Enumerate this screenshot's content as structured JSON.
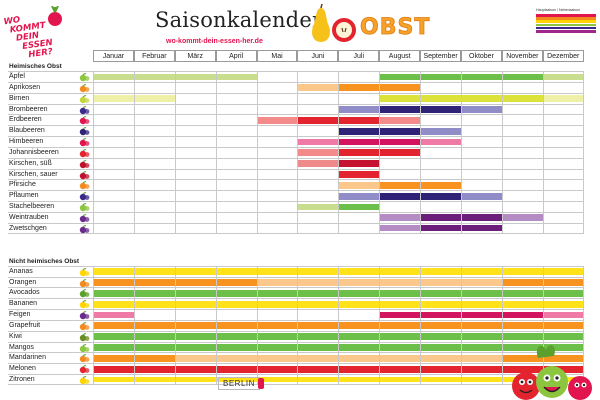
{
  "brand": {
    "logo_lines": [
      "WO",
      "KOMMT",
      "DEIN",
      "ESSEN",
      "HER?"
    ],
    "title": "Saisonkalender",
    "subtitle": "wo-kommt-dein-essen-her.de",
    "section_word": "OBST"
  },
  "key": {
    "title": "Hauptsaison / Nebensaison",
    "colors": [
      "#e3154f",
      "#f28a1e",
      "#ffd400",
      "#8cc63f",
      "#3a2a8c",
      "#a0288c"
    ]
  },
  "months": [
    "Januar",
    "Februar",
    "März",
    "April",
    "Mai",
    "Juni",
    "Juli",
    "August",
    "September",
    "Oktober",
    "November",
    "Dezember"
  ],
  "sections": [
    {
      "title": "Heimisches Obst",
      "rows": [
        {
          "name": "Äpfel",
          "icon": "apple-icon",
          "icon_color": "#8cc63f",
          "main": [
            7,
            8,
            9,
            10
          ],
          "side": [
            0,
            1,
            2,
            3,
            11
          ],
          "main_color": "#6cc04a",
          "side_color": "#c8dd8e"
        },
        {
          "name": "Aprikosen",
          "icon": "apricot-icon",
          "icon_color": "#f28a1e",
          "main": [
            6,
            7
          ],
          "side": [
            5
          ],
          "main_color": "#f7931e",
          "side_color": "#fbc78a"
        },
        {
          "name": "Birnen",
          "icon": "pear-icon",
          "icon_color": "#c5d63d",
          "main": [
            7,
            8,
            9,
            10
          ],
          "side": [
            0,
            1,
            11
          ],
          "main_color": "#dbe23a",
          "side_color": "#eef0a8"
        },
        {
          "name": "Brombeeren",
          "icon": "blackberry-icon",
          "icon_color": "#3a2a8c",
          "main": [
            7,
            8
          ],
          "side": [
            6,
            9
          ],
          "main_color": "#2e2377",
          "side_color": "#8f8cc7"
        },
        {
          "name": "Erdbeeren",
          "icon": "strawberry-icon",
          "icon_color": "#e3154f",
          "main": [
            5,
            6
          ],
          "side": [
            4,
            7
          ],
          "main_color": "#e3232e",
          "side_color": "#f38b8b"
        },
        {
          "name": "Blaubeeren",
          "icon": "blueberry-icon",
          "icon_color": "#2e2377",
          "main": [
            6,
            7
          ],
          "side": [
            8
          ],
          "main_color": "#2e2377",
          "side_color": "#8f8cc7"
        },
        {
          "name": "Himbeeren",
          "icon": "raspberry-icon",
          "icon_color": "#e3154f",
          "main": [
            6,
            7
          ],
          "side": [
            5,
            8
          ],
          "main_color": "#d3145f",
          "side_color": "#f07aa6"
        },
        {
          "name": "Johannisbeeren",
          "icon": "currant-icon",
          "icon_color": "#e3232e",
          "main": [
            6,
            7
          ],
          "side": [
            5
          ],
          "main_color": "#e3232e",
          "side_color": "#f38b8b"
        },
        {
          "name": "Kirschen, süß",
          "icon": "cherry-icon",
          "icon_color": "#c0102a",
          "main": [
            6
          ],
          "side": [
            5
          ],
          "main_color": "#c51230",
          "side_color": "#ef8a8a"
        },
        {
          "name": "Kirschen, sauer",
          "icon": "sour-cherry-icon",
          "icon_color": "#c0102a",
          "main": [
            6
          ],
          "side": [],
          "main_color": "#e3232e",
          "side_color": "#f38b8b"
        },
        {
          "name": "Pfirsiche",
          "icon": "peach-icon",
          "icon_color": "#f28a1e",
          "main": [
            7,
            8
          ],
          "side": [
            6
          ],
          "main_color": "#f7931e",
          "side_color": "#fbc78a"
        },
        {
          "name": "Pflaumen",
          "icon": "plum-icon",
          "icon_color": "#3a2a8c",
          "main": [
            7,
            8
          ],
          "side": [
            6,
            9
          ],
          "main_color": "#2e2377",
          "side_color": "#8f8cc7"
        },
        {
          "name": "Stachelbeeren",
          "icon": "gooseberry-icon",
          "icon_color": "#8cc63f",
          "main": [
            6
          ],
          "side": [
            5
          ],
          "main_color": "#6cc04a",
          "side_color": "#c8dd8e"
        },
        {
          "name": "Weintrauben",
          "icon": "grape-icon",
          "icon_color": "#6a2c8c",
          "main": [
            8,
            9
          ],
          "side": [
            7,
            10
          ],
          "main_color": "#6b1f7a",
          "side_color": "#b58bc3"
        },
        {
          "name": "Zwetschgen",
          "icon": "plum-icon",
          "icon_color": "#6a2c8c",
          "main": [
            8,
            9
          ],
          "side": [
            7
          ],
          "main_color": "#6b1f7a",
          "side_color": "#b58bc3"
        }
      ]
    },
    {
      "title": "Nicht heimisches Obst",
      "rows": [
        {
          "name": "Ananas",
          "icon": "pineapple-icon",
          "icon_color": "#ffd400",
          "main": [
            0,
            1,
            2,
            3,
            4,
            5,
            6,
            7,
            8,
            9,
            10,
            11
          ],
          "side": [],
          "main_color": "#ffe21a",
          "side_color": "#fff29a"
        },
        {
          "name": "Orangen",
          "icon": "orange-icon",
          "icon_color": "#f28a1e",
          "main": [
            0,
            1,
            2,
            3,
            10,
            11
          ],
          "side": [
            4,
            5,
            6,
            7,
            8,
            9
          ],
          "main_color": "#f7931e",
          "side_color": "#fbc78a"
        },
        {
          "name": "Avocados",
          "icon": "avocado-icon",
          "icon_color": "#5aa02c",
          "main": [
            0,
            1,
            2,
            3,
            4,
            5,
            6,
            7,
            8,
            9,
            10,
            11
          ],
          "side": [],
          "main_color": "#6cc04a",
          "side_color": "#c8dd8e"
        },
        {
          "name": "Bananen",
          "icon": "banana-icon",
          "icon_color": "#ffd400",
          "main": [
            0,
            1,
            2,
            3,
            4,
            5,
            6,
            7,
            8,
            9,
            10,
            11
          ],
          "side": [],
          "main_color": "#ffe21a",
          "side_color": "#fff29a"
        },
        {
          "name": "Feigen",
          "icon": "fig-icon",
          "icon_color": "#6a2c8c",
          "main": [
            7,
            8,
            9,
            10
          ],
          "side": [
            0,
            11
          ],
          "main_color": "#d3145f",
          "side_color": "#f07aa6"
        },
        {
          "name": "Grapefruit",
          "icon": "grapefruit-icon",
          "icon_color": "#f28a1e",
          "main": [
            0,
            1,
            2,
            3,
            4,
            5,
            6,
            7,
            8,
            9,
            10,
            11
          ],
          "side": [],
          "main_color": "#f7931e",
          "side_color": "#fbc78a"
        },
        {
          "name": "Kiwi",
          "icon": "kiwi-icon",
          "icon_color": "#6b8e23",
          "main": [
            0,
            1,
            2,
            3,
            4,
            5,
            6,
            7,
            8,
            9,
            10,
            11
          ],
          "side": [],
          "main_color": "#6cc04a",
          "side_color": "#c8dd8e"
        },
        {
          "name": "Mangos",
          "icon": "mango-icon",
          "icon_color": "#8cc63f",
          "main": [
            0,
            1,
            2,
            3,
            4,
            5,
            6,
            7,
            8,
            9,
            10,
            11
          ],
          "side": [],
          "main_color": "#6cc04a",
          "side_color": "#c8dd8e"
        },
        {
          "name": "Mandarinen",
          "icon": "mandarin-icon",
          "icon_color": "#f28a1e",
          "main": [
            0,
            1,
            10,
            11
          ],
          "side": [
            2,
            3,
            4,
            5,
            6,
            7,
            8,
            9
          ],
          "main_color": "#f7931e",
          "side_color": "#fbc78a"
        },
        {
          "name": "Melonen",
          "icon": "melon-icon",
          "icon_color": "#e3232e",
          "main": [
            0,
            1,
            2,
            3,
            4,
            5,
            6,
            7,
            8,
            9,
            10,
            11
          ],
          "side": [],
          "main_color": "#e3232e",
          "side_color": "#f38b8b"
        },
        {
          "name": "Zitronen",
          "icon": "lemon-icon",
          "icon_color": "#ffd400",
          "main": [
            0,
            1,
            2,
            3,
            4,
            5,
            6,
            7,
            8,
            9,
            10,
            11
          ],
          "side": [],
          "main_color": "#ffe21a",
          "side_color": "#fff29a"
        }
      ]
    }
  ],
  "footer": {
    "berlin": "BERLIN"
  }
}
